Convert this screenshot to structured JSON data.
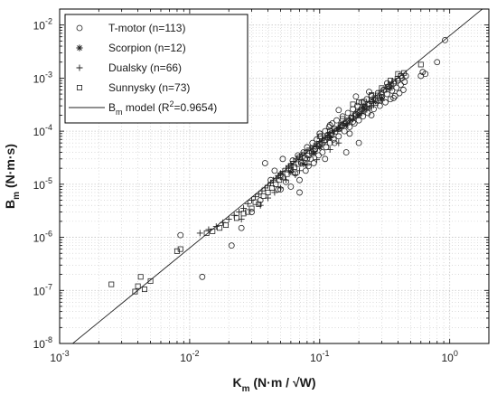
{
  "chart_data": {
    "type": "scatter",
    "title": "",
    "x_scale": "log",
    "y_scale": "log",
    "xlim": [
      0.001,
      2
    ],
    "ylim": [
      1e-08,
      0.02
    ],
    "grid": true,
    "legend_placement": "top-left",
    "xlabel": {
      "main": "K",
      "sub": "m",
      "rest": " (N·m / √W)"
    },
    "ylabel": {
      "main": "B",
      "sub": "m",
      "rest": " (N·m·s)"
    },
    "x_ticks": [
      {
        "value": 0.001,
        "base": "10",
        "exp": "-3"
      },
      {
        "value": 0.01,
        "base": "10",
        "exp": "-2"
      },
      {
        "value": 0.1,
        "base": "10",
        "exp": "-1"
      },
      {
        "value": 1,
        "base": "10",
        "exp": "0"
      }
    ],
    "y_ticks": [
      {
        "value": 1e-08,
        "base": "10",
        "exp": "-8"
      },
      {
        "value": 1e-07,
        "base": "10",
        "exp": "-7"
      },
      {
        "value": 1e-06,
        "base": "10",
        "exp": "-6"
      },
      {
        "value": 1e-05,
        "base": "10",
        "exp": "-5"
      },
      {
        "value": 0.0001,
        "base": "10",
        "exp": "-4"
      },
      {
        "value": 0.001,
        "base": "10",
        "exp": "-3"
      },
      {
        "value": 0.01,
        "base": "10",
        "exp": "-2"
      }
    ],
    "series": [
      {
        "name": "T-motor (n=113)",
        "marker": "circle",
        "points": [
          [
            0.0085,
            1.1e-06
          ],
          [
            0.0125,
            1.8e-07
          ],
          [
            0.021,
            7e-07
          ],
          [
            0.025,
            1.5e-06
          ],
          [
            0.03,
            3e-06
          ],
          [
            0.035,
            5e-06
          ],
          [
            0.038,
            2.5e-05
          ],
          [
            0.042,
            1.2e-05
          ],
          [
            0.045,
            1.8e-05
          ],
          [
            0.048,
            8e-06
          ],
          [
            0.05,
            1.5e-05
          ],
          [
            0.052,
            3e-05
          ],
          [
            0.055,
            1.1e-05
          ],
          [
            0.058,
            2e-05
          ],
          [
            0.06,
            9e-06
          ],
          [
            0.062,
            2.8e-05
          ],
          [
            0.065,
            1.6e-05
          ],
          [
            0.068,
            3.5e-05
          ],
          [
            0.07,
            1.2e-05
          ],
          [
            0.072,
            2.5e-05
          ],
          [
            0.075,
            4e-05
          ],
          [
            0.078,
            1.8e-05
          ],
          [
            0.08,
            5e-05
          ],
          [
            0.082,
            2.2e-05
          ],
          [
            0.085,
            3e-05
          ],
          [
            0.088,
            6e-05
          ],
          [
            0.09,
            2.5e-05
          ],
          [
            0.092,
            4.5e-05
          ],
          [
            0.095,
            7e-05
          ],
          [
            0.098,
            3.5e-05
          ],
          [
            0.1,
            5.5e-05
          ],
          [
            0.102,
            8e-05
          ],
          [
            0.105,
            4e-05
          ],
          [
            0.108,
            6.5e-05
          ],
          [
            0.11,
            0.0001
          ],
          [
            0.112,
            5e-05
          ],
          [
            0.115,
            8.5e-05
          ],
          [
            0.118,
            0.00012
          ],
          [
            0.12,
            6e-05
          ],
          [
            0.122,
            9e-05
          ],
          [
            0.125,
            0.00014
          ],
          [
            0.128,
            7e-05
          ],
          [
            0.13,
            0.00011
          ],
          [
            0.135,
            0.00016
          ],
          [
            0.14,
            8e-05
          ],
          [
            0.145,
            0.00013
          ],
          [
            0.15,
            0.00019
          ],
          [
            0.155,
            0.0001
          ],
          [
            0.16,
            0.00015
          ],
          [
            0.165,
            0.00022
          ],
          [
            0.17,
            0.00012
          ],
          [
            0.175,
            0.00018
          ],
          [
            0.18,
            0.00026
          ],
          [
            0.185,
            0.00014
          ],
          [
            0.19,
            0.00021
          ],
          [
            0.195,
            0.0003
          ],
          [
            0.2,
            0.00016
          ],
          [
            0.205,
            0.00024
          ],
          [
            0.21,
            0.00035
          ],
          [
            0.215,
            0.00019
          ],
          [
            0.22,
            0.00028
          ],
          [
            0.23,
            0.0004
          ],
          [
            0.235,
            0.00022
          ],
          [
            0.24,
            0.00032
          ],
          [
            0.25,
            0.00046
          ],
          [
            0.26,
            0.00026
          ],
          [
            0.27,
            0.00038
          ],
          [
            0.28,
            0.00052
          ],
          [
            0.29,
            0.0003
          ],
          [
            0.3,
            0.00044
          ],
          [
            0.31,
            0.0006
          ],
          [
            0.32,
            0.00035
          ],
          [
            0.33,
            0.0005
          ],
          [
            0.34,
            0.0007
          ],
          [
            0.35,
            0.0004
          ],
          [
            0.36,
            0.00058
          ],
          [
            0.37,
            0.0008
          ],
          [
            0.38,
            0.00046
          ],
          [
            0.39,
            0.00066
          ],
          [
            0.4,
            0.0009
          ],
          [
            0.41,
            0.00052
          ],
          [
            0.42,
            0.00075
          ],
          [
            0.43,
            0.001
          ],
          [
            0.44,
            0.0006
          ],
          [
            0.45,
            0.00085
          ],
          [
            0.46,
            0.0011
          ],
          [
            0.6,
            0.0011
          ],
          [
            0.62,
            0.0013
          ],
          [
            0.65,
            0.0012
          ],
          [
            0.8,
            0.002
          ],
          [
            0.92,
            0.0052
          ],
          [
            0.11,
            3e-05
          ],
          [
            0.16,
            4e-05
          ],
          [
            0.2,
            6e-05
          ],
          [
            0.25,
            0.0002
          ],
          [
            0.07,
            7e-06
          ],
          [
            0.06,
            2.2e-05
          ],
          [
            0.13,
            6e-05
          ],
          [
            0.17,
            9e-05
          ],
          [
            0.14,
            0.00025
          ],
          [
            0.19,
            0.00045
          ],
          [
            0.24,
            0.00055
          ],
          [
            0.28,
            0.00038
          ],
          [
            0.33,
            0.0008
          ],
          [
            0.37,
            0.00042
          ],
          [
            0.42,
            0.0011
          ],
          [
            0.08,
            3e-05
          ],
          [
            0.09,
            4.2e-05
          ],
          [
            0.1,
            9e-05
          ],
          [
            0.12,
            0.00013
          ],
          [
            0.15,
            0.00013
          ],
          [
            0.18,
            0.00015
          ],
          [
            0.05,
            8e-06
          ]
        ]
      },
      {
        "name": "Scorpion (n=12)",
        "marker": "asterisk",
        "points": [
          [
            0.06,
            1.7e-05
          ],
          [
            0.075,
            2.4e-05
          ],
          [
            0.09,
            3.8e-05
          ],
          [
            0.1,
            5e-05
          ],
          [
            0.12,
            7.5e-05
          ],
          [
            0.14,
            0.00011
          ],
          [
            0.16,
            0.00013
          ],
          [
            0.2,
            0.0002
          ],
          [
            0.22,
            0.00028
          ],
          [
            0.26,
            0.00036
          ],
          [
            0.3,
            0.00042
          ],
          [
            0.35,
            0.00065
          ]
        ]
      },
      {
        "name": "Dualsky (n=66)",
        "marker": "plus",
        "points": [
          [
            0.012,
            1.2e-06
          ],
          [
            0.014,
            1.4e-06
          ],
          [
            0.016,
            1.6e-06
          ],
          [
            0.018,
            1.9e-06
          ],
          [
            0.02,
            2.2e-06
          ],
          [
            0.022,
            2.6e-06
          ],
          [
            0.024,
            3e-06
          ],
          [
            0.026,
            3.5e-06
          ],
          [
            0.028,
            4.3e-06
          ],
          [
            0.03,
            5e-06
          ],
          [
            0.032,
            5.8e-06
          ],
          [
            0.034,
            6.5e-06
          ],
          [
            0.036,
            7.5e-06
          ],
          [
            0.038,
            8.5e-06
          ],
          [
            0.04,
            9.5e-06
          ],
          [
            0.042,
            1.05e-05
          ],
          [
            0.044,
            1.2e-05
          ],
          [
            0.046,
            1.3e-05
          ],
          [
            0.048,
            1.45e-05
          ],
          [
            0.05,
            1.6e-05
          ],
          [
            0.052,
            1.75e-05
          ],
          [
            0.055,
            2e-05
          ],
          [
            0.058,
            2.2e-05
          ],
          [
            0.06,
            2.4e-05
          ],
          [
            0.063,
            2.7e-05
          ],
          [
            0.066,
            3e-05
          ],
          [
            0.07,
            3.3e-05
          ],
          [
            0.073,
            3.6e-05
          ],
          [
            0.076,
            3.9e-05
          ],
          [
            0.08,
            4.3e-05
          ],
          [
            0.085,
            4.8e-05
          ],
          [
            0.09,
            5.2e-05
          ],
          [
            0.095,
            5.8e-05
          ],
          [
            0.1,
            6.4e-05
          ],
          [
            0.105,
            7e-05
          ],
          [
            0.11,
            7.6e-05
          ],
          [
            0.115,
            8.3e-05
          ],
          [
            0.12,
            9e-05
          ],
          [
            0.13,
            0.000102
          ],
          [
            0.14,
            0.000115
          ],
          [
            0.15,
            0.00013
          ],
          [
            0.16,
            0.00014
          ],
          [
            0.17,
            0.000155
          ],
          [
            0.18,
            0.00017
          ],
          [
            0.19,
            0.000185
          ],
          [
            0.2,
            0.0002
          ],
          [
            0.21,
            0.00022
          ],
          [
            0.22,
            0.00024
          ],
          [
            0.23,
            0.000255
          ],
          [
            0.24,
            0.00027
          ],
          [
            0.25,
            0.00029
          ],
          [
            0.26,
            0.00031
          ],
          [
            0.28,
            0.00034
          ],
          [
            0.3,
            0.00038
          ],
          [
            0.045,
            7e-06
          ],
          [
            0.05,
            8.5e-06
          ],
          [
            0.065,
            1.5e-05
          ],
          [
            0.08,
            2.3e-05
          ],
          [
            0.095,
            2.9e-05
          ],
          [
            0.12,
            4.5e-05
          ],
          [
            0.14,
            6e-05
          ],
          [
            0.025,
            2.2e-06
          ],
          [
            0.035,
            4e-06
          ],
          [
            0.04,
            5.5e-06
          ],
          [
            0.055,
            1.2e-05
          ],
          [
            0.07,
            1.8e-05
          ]
        ]
      },
      {
        "name": "Sunnysky (n=73)",
        "marker": "square",
        "points": [
          [
            0.0025,
            1.3e-07
          ],
          [
            0.0038,
            9.5e-08
          ],
          [
            0.004,
            1.2e-07
          ],
          [
            0.0042,
            1.8e-07
          ],
          [
            0.0045,
            1.05e-07
          ],
          [
            0.005,
            1.5e-07
          ],
          [
            0.008,
            5.5e-07
          ],
          [
            0.0085,
            6e-07
          ],
          [
            0.0135,
            1.2e-06
          ],
          [
            0.015,
            1.3e-06
          ],
          [
            0.017,
            1.5e-06
          ],
          [
            0.019,
            1.7e-06
          ],
          [
            0.023,
            2.3e-06
          ],
          [
            0.026,
            2.8e-06
          ],
          [
            0.03,
            3.5e-06
          ],
          [
            0.034,
            4.2e-06
          ],
          [
            0.037,
            6e-06
          ],
          [
            0.04,
            7e-06
          ],
          [
            0.043,
            8.5e-06
          ],
          [
            0.046,
            1e-05
          ],
          [
            0.049,
            1.2e-05
          ],
          [
            0.052,
            1.35e-05
          ],
          [
            0.056,
            1.55e-05
          ],
          [
            0.06,
            1.85e-05
          ],
          [
            0.064,
            2.1e-05
          ],
          [
            0.068,
            2.4e-05
          ],
          [
            0.072,
            2.7e-05
          ],
          [
            0.077,
            3.1e-05
          ],
          [
            0.082,
            3.5e-05
          ],
          [
            0.087,
            4e-05
          ],
          [
            0.092,
            4.6e-05
          ],
          [
            0.098,
            5.2e-05
          ],
          [
            0.104,
            6e-05
          ],
          [
            0.11,
            6.8e-05
          ],
          [
            0.117,
            7.6e-05
          ],
          [
            0.124,
            8.6e-05
          ],
          [
            0.132,
            9.8e-05
          ],
          [
            0.14,
            0.00011
          ],
          [
            0.148,
            0.000125
          ],
          [
            0.157,
            0.00014
          ],
          [
            0.166,
            0.00016
          ],
          [
            0.176,
            0.00018
          ],
          [
            0.187,
            0.0002
          ],
          [
            0.198,
            0.00023
          ],
          [
            0.21,
            0.00026
          ],
          [
            0.222,
            0.00029
          ],
          [
            0.235,
            0.00033
          ],
          [
            0.25,
            0.00037
          ],
          [
            0.265,
            0.00042
          ],
          [
            0.28,
            0.00047
          ],
          [
            0.297,
            0.00053
          ],
          [
            0.315,
            0.0006
          ],
          [
            0.333,
            0.00068
          ],
          [
            0.353,
            0.00076
          ],
          [
            0.374,
            0.00086
          ],
          [
            0.396,
            0.00097
          ],
          [
            0.42,
            0.0011
          ],
          [
            0.445,
            0.00125
          ],
          [
            0.6,
            0.0018
          ],
          [
            0.2,
            0.00035
          ],
          [
            0.18,
            0.00032
          ],
          [
            0.25,
            0.00048
          ],
          [
            0.3,
            0.00065
          ],
          [
            0.35,
            0.0009
          ],
          [
            0.4,
            0.0012
          ],
          [
            0.22,
            0.00036
          ],
          [
            0.15,
            0.00017
          ],
          [
            0.1,
            8e-05
          ],
          [
            0.07,
            3.2e-05
          ],
          [
            0.05,
            1.4e-05
          ],
          [
            0.028,
            3e-06
          ],
          [
            0.032,
            4.6e-06
          ],
          [
            0.12,
            0.0001
          ]
        ]
      }
    ],
    "model": {
      "name_main": "B",
      "name_sub": "m",
      "name_rest": " model (R",
      "name_sup": "2",
      "name_end": "=0.9654)",
      "coef": 0.0063,
      "exponent": 2
    }
  }
}
